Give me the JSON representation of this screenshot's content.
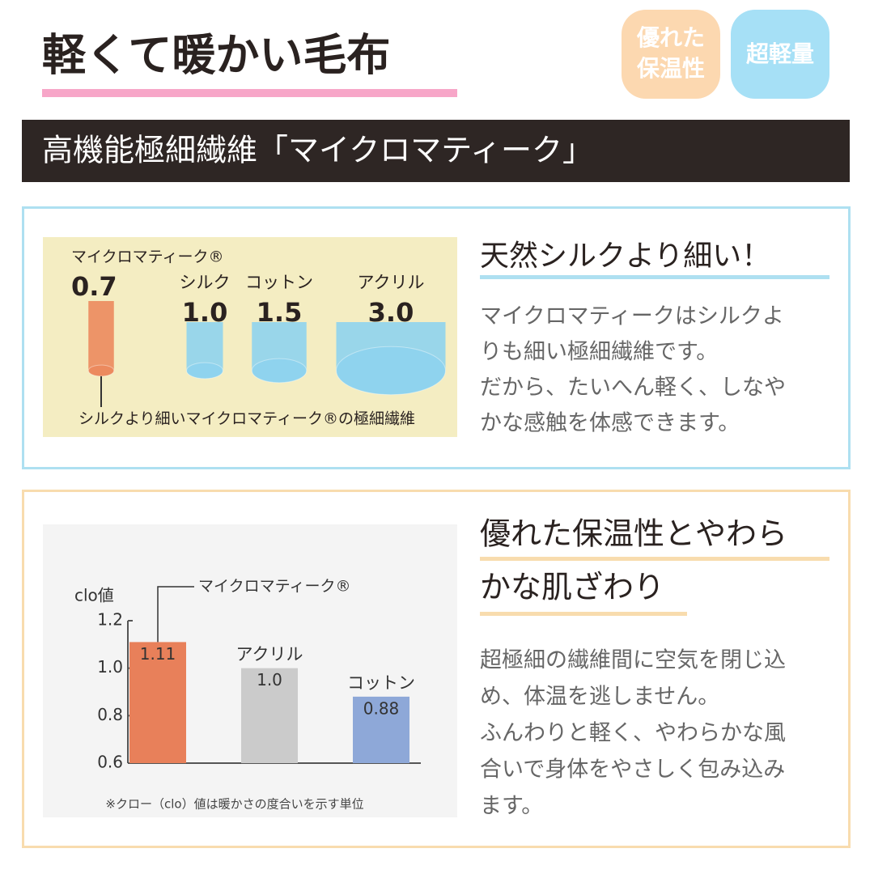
{
  "header": {
    "title": "軽くて暖かい毛布",
    "badges": [
      {
        "lines": [
          "優れた",
          "保温性"
        ]
      },
      {
        "lines": [
          "超軽量"
        ]
      }
    ]
  },
  "banner": "高機能極細繊維「マイクロマティーク」",
  "section1": {
    "heading": "天然シルクより細い！",
    "body": [
      "マイクロマティークはシルクよ",
      "りも細い極細繊維です。",
      "だから、たいへん軽く、しなや",
      "かな感触を体感できます。"
    ],
    "figure": {
      "names": [
        "マイクロマティーク®",
        "シルク",
        "コットン",
        "アクリル"
      ],
      "values": [
        0.7,
        1.0,
        1.5,
        3.0
      ],
      "value_labels": [
        "0.7",
        "1.0",
        "1.5",
        "3.0"
      ],
      "colors": [
        "#ec8a5e",
        "#8fd3ee",
        "#8fd3ee",
        "#8fd3ee"
      ],
      "caption": "シルクより細いマイクロマティーク®の極細繊維"
    }
  },
  "section2": {
    "heading": [
      "優れた保温性とやわら",
      "かな肌ざわり"
    ],
    "body": [
      "超極細の繊維間に空気を閉じ込",
      "め、体温を逃しません。",
      "ふんわりと軽く、やわらかな風",
      "合いで身体をやさしく包み込み",
      "ます。"
    ],
    "chart_data": {
      "type": "bar",
      "y_label": "clo値",
      "categories": [
        "マイクロマティーク®",
        "アクリル",
        "コットン"
      ],
      "values": [
        1.11,
        1.0,
        0.88
      ],
      "value_labels": [
        "1.11",
        "1.0",
        "0.88"
      ],
      "colors": [
        "#e8805a",
        "#cbcbcb",
        "#8ea8d8"
      ],
      "ylim": [
        0.6,
        1.2
      ],
      "yticks": [
        0.6,
        0.8,
        {
          "value": 1.0,
          "label": "1.0"
        },
        1.2
      ],
      "note": "※クロー（clo）値は暖かさの度合いを示す単位"
    }
  }
}
